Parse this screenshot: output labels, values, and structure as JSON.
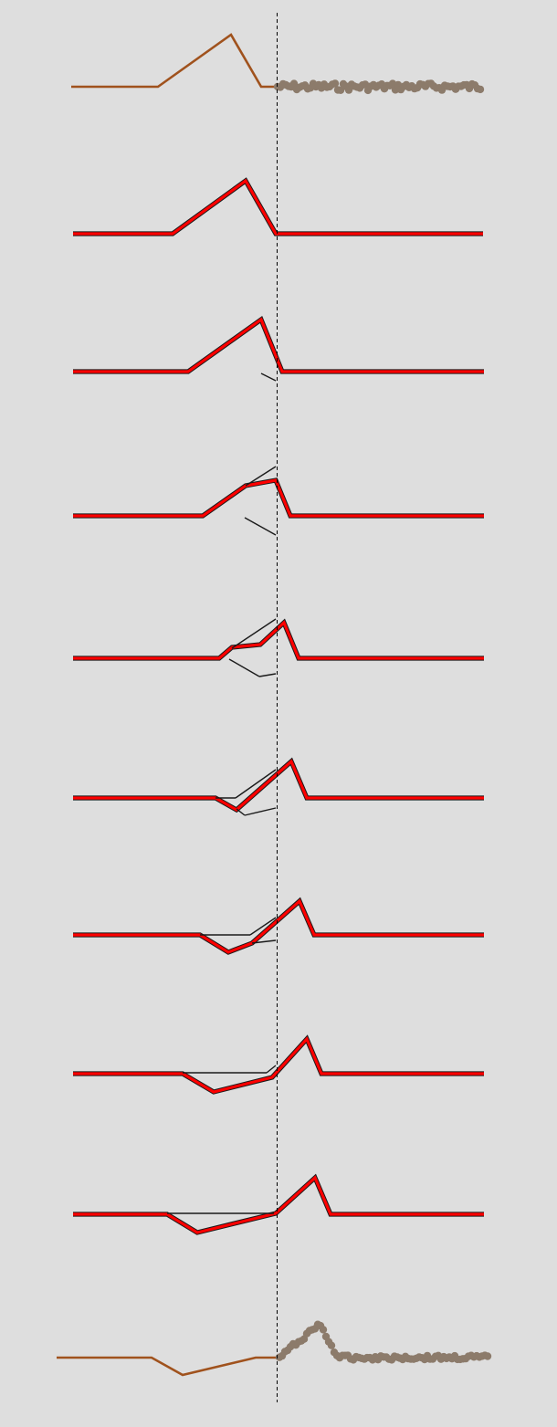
{
  "colors": {
    "background": "#dedede",
    "input_wave": "#a0521d",
    "sample_dots": "#8c7b6b",
    "reconstruction": "#ff0000",
    "outline": "#1a1a1a",
    "center_line": "#000000"
  },
  "rows": [
    {
      "kind": "input",
      "has_input_wave": true,
      "has_samples": true,
      "samples": "flat-noisy"
    },
    {
      "kind": "step",
      "index": 1
    },
    {
      "kind": "step",
      "index": 2
    },
    {
      "kind": "step",
      "index": 3
    },
    {
      "kind": "step",
      "index": 4
    },
    {
      "kind": "step",
      "index": 5
    },
    {
      "kind": "step",
      "index": 6
    },
    {
      "kind": "step",
      "index": 7
    },
    {
      "kind": "step",
      "index": 8
    },
    {
      "kind": "output",
      "has_input_wave": true,
      "has_samples": true,
      "samples": "pulse-then-flat"
    }
  ],
  "center_marker": {
    "style": "dashed"
  }
}
